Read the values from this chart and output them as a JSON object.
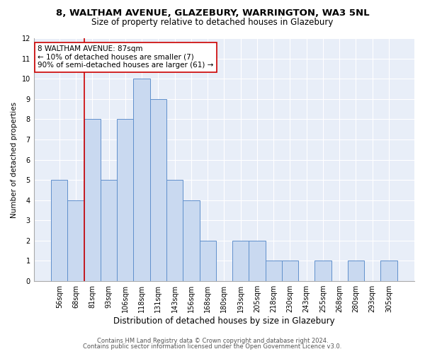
{
  "title1": "8, WALTHAM AVENUE, GLAZEBURY, WARRINGTON, WA3 5NL",
  "title2": "Size of property relative to detached houses in Glazebury",
  "xlabel": "Distribution of detached houses by size in Glazebury",
  "ylabel": "Number of detached properties",
  "categories": [
    "56sqm",
    "68sqm",
    "81sqm",
    "93sqm",
    "106sqm",
    "118sqm",
    "131sqm",
    "143sqm",
    "156sqm",
    "168sqm",
    "180sqm",
    "193sqm",
    "205sqm",
    "218sqm",
    "230sqm",
    "243sqm",
    "255sqm",
    "268sqm",
    "280sqm",
    "293sqm",
    "305sqm"
  ],
  "values": [
    5,
    4,
    8,
    5,
    8,
    10,
    9,
    5,
    4,
    2,
    0,
    2,
    2,
    1,
    1,
    0,
    1,
    0,
    1,
    0,
    1
  ],
  "bar_color": "#c9d9f0",
  "bar_edge_color": "#6090cc",
  "property_line_x": 1.5,
  "annotation_text": "8 WALTHAM AVENUE: 87sqm\n← 10% of detached houses are smaller (7)\n90% of semi-detached houses are larger (61) →",
  "annotation_box_color": "#ffffff",
  "annotation_box_edge": "#cc0000",
  "vline_color": "#cc0000",
  "ylim": [
    0,
    12
  ],
  "yticks": [
    0,
    1,
    2,
    3,
    4,
    5,
    6,
    7,
    8,
    9,
    10,
    11,
    12
  ],
  "footer1": "Contains HM Land Registry data © Crown copyright and database right 2024.",
  "footer2": "Contains public sector information licensed under the Open Government Licence v3.0.",
  "fig_background": "#ffffff",
  "ax_background": "#e8eef8",
  "grid_color": "#ffffff",
  "title1_fontsize": 9.5,
  "title2_fontsize": 8.5,
  "xlabel_fontsize": 8.5,
  "ylabel_fontsize": 7.5,
  "tick_fontsize": 7,
  "annotation_fontsize": 7.5,
  "footer_fontsize": 6
}
